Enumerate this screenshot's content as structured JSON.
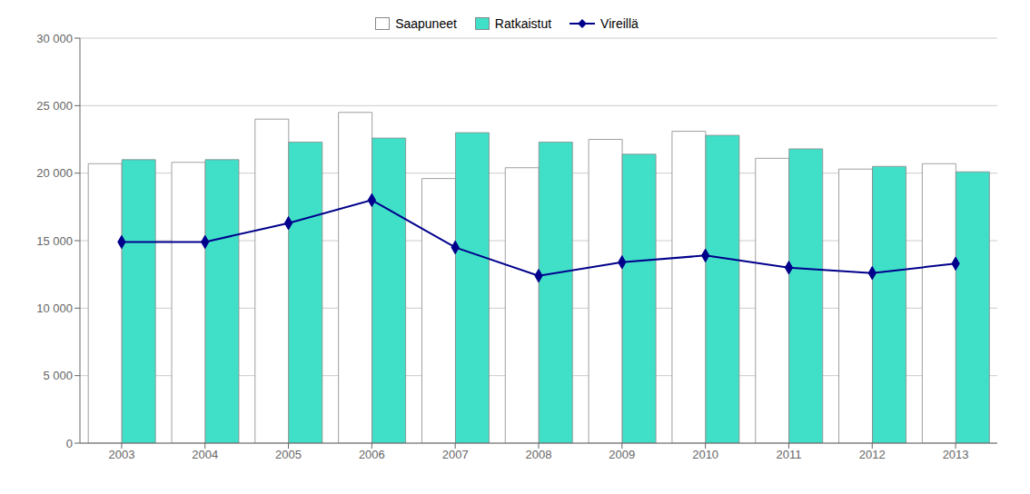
{
  "chart_data": {
    "type": "bar",
    "categories": [
      "2003",
      "2004",
      "2005",
      "2006",
      "2007",
      "2008",
      "2009",
      "2010",
      "2011",
      "2012",
      "2013"
    ],
    "series": [
      {
        "name": "Saapuneet",
        "type": "bar",
        "color": "#ffffff",
        "values": [
          20700,
          20800,
          24000,
          24500,
          19600,
          20400,
          22500,
          23100,
          21100,
          20300,
          20700
        ]
      },
      {
        "name": "Ratkaistut",
        "type": "bar",
        "color": "#40E0C8",
        "values": [
          21000,
          21000,
          22300,
          22600,
          23000,
          22300,
          21400,
          22800,
          21800,
          20500,
          20100
        ]
      },
      {
        "name": "Vireillä",
        "type": "line",
        "color": "#00008B",
        "marker": "diamond",
        "values": [
          14900,
          14900,
          16300,
          18000,
          14500,
          12400,
          13400,
          13900,
          13000,
          12600,
          13300
        ]
      }
    ],
    "ylim": [
      0,
      30000
    ],
    "yticks": [
      0,
      {
        "value": 5000,
        "label": "5 000"
      },
      {
        "value": 10000,
        "label": "10 000"
      },
      {
        "value": 15000,
        "label": "15 000"
      },
      {
        "value": 20000,
        "label": "20 000"
      },
      {
        "value": 25000,
        "label": "25 000"
      },
      {
        "value": 30000,
        "label": "30 000"
      }
    ],
    "grid": true,
    "legend": "top"
  }
}
